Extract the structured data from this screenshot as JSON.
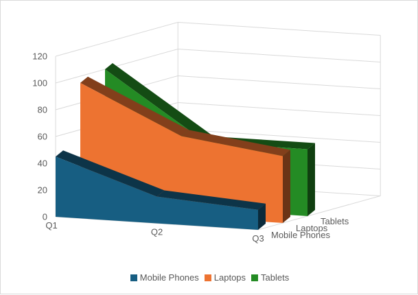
{
  "chart_data": {
    "type": "area",
    "view": "3d",
    "categories": [
      "Q1",
      "Q2",
      "Q3"
    ],
    "series": [
      {
        "name": "Mobile Phones",
        "values": [
          45,
          20,
          15
        ],
        "color": "#175e82"
      },
      {
        "name": "Laptops",
        "values": [
          95,
          60,
          50
        ],
        "color": "#ed7331"
      },
      {
        "name": "Tablets",
        "values": [
          100,
          50,
          50
        ],
        "color": "#248b24"
      }
    ],
    "ylim": [
      0,
      120
    ],
    "yticks": [
      "0",
      "20",
      "40",
      "60",
      "80",
      "100",
      "120"
    ],
    "grid": true,
    "legend": "bottom"
  },
  "legend": {
    "items": [
      {
        "label": "Mobile Phones",
        "color": "#175e82"
      },
      {
        "label": "Laptops",
        "color": "#ed7331"
      },
      {
        "label": "Tablets",
        "color": "#248b24"
      }
    ]
  }
}
